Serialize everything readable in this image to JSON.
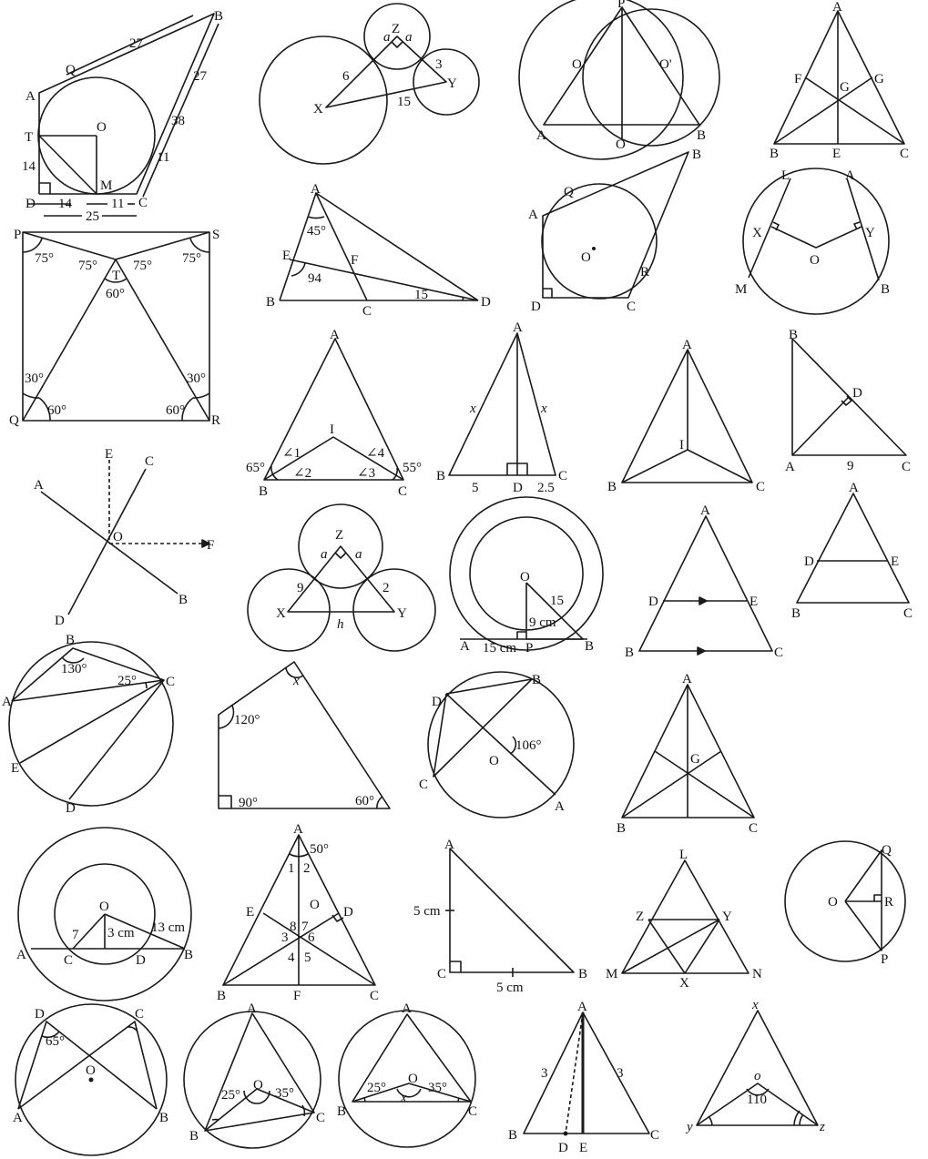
{
  "figures": [
    {
      "id": "kite-incircle",
      "labels": [
        "A",
        "B",
        "C",
        "D",
        "M",
        "O",
        "Q",
        "T",
        "27",
        "27",
        "38",
        "11",
        "14",
        "14",
        "11",
        "25"
      ]
    },
    {
      "id": "three-circles-right-angle",
      "labels": [
        "Z",
        "a",
        "a",
        "X",
        "Y",
        "6",
        "3",
        "15"
      ]
    },
    {
      "id": "two-circles-triangle",
      "labels": [
        "P",
        "O",
        "O'",
        "A",
        "O",
        "B"
      ]
    },
    {
      "id": "triangle-centroid",
      "labels": [
        "A",
        "F",
        "G",
        "G",
        "B",
        "E",
        "C"
      ]
    },
    {
      "id": "square-equilateral",
      "labels": [
        "P",
        "S",
        "Q",
        "R",
        "T",
        "75°",
        "75°",
        "75°",
        "75°",
        "60°",
        "30°",
        "60°",
        "30°",
        "60°"
      ]
    },
    {
      "id": "triangle-cevian",
      "labels": [
        "A",
        "45°",
        "E",
        "F",
        "94",
        "15",
        "B",
        "C",
        "D"
      ]
    },
    {
      "id": "quad-incircle",
      "labels": [
        "B",
        "Q",
        "A",
        "O",
        "R",
        "D",
        "C"
      ]
    },
    {
      "id": "circle-chords-perp",
      "labels": [
        "L",
        "A",
        "X",
        "Y",
        "O",
        "M",
        "B"
      ]
    },
    {
      "id": "triangle-incenter-angles",
      "labels": [
        "A",
        "I",
        "∠1",
        "∠4",
        "65°",
        "∠2",
        "∠3",
        "55°",
        "B",
        "C"
      ]
    },
    {
      "id": "isosceles-altitude",
      "labels": [
        "A",
        "x",
        "x",
        "B",
        "5",
        "D",
        "2.5",
        "C"
      ]
    },
    {
      "id": "triangle-incenter",
      "labels": [
        "A",
        "I",
        "B",
        "C"
      ]
    },
    {
      "id": "right-triangle-altitude",
      "labels": [
        "B",
        "D",
        "A",
        "9",
        "C"
      ]
    },
    {
      "id": "intersecting-lines",
      "labels": [
        "E",
        "C",
        "A",
        "O",
        "F",
        "D",
        "B"
      ]
    },
    {
      "id": "three-circles-h",
      "labels": [
        "Z",
        "a",
        "a",
        "9",
        "2",
        "X",
        "Y",
        "h"
      ]
    },
    {
      "id": "concentric-chord",
      "labels": [
        "O",
        "15",
        "9 cm",
        "A",
        "15 cm",
        "P",
        "B"
      ]
    },
    {
      "id": "triangle-parallel-arrows",
      "labels": [
        "A",
        "D",
        "E",
        "B",
        "C"
      ]
    },
    {
      "id": "triangle-midline",
      "labels": [
        "A",
        "D",
        "E",
        "B",
        "C"
      ]
    },
    {
      "id": "cyclic-chords",
      "labels": [
        "B",
        "130°",
        "25°",
        "C",
        "A",
        "E",
        "D"
      ]
    },
    {
      "id": "pentagon-angles",
      "labels": [
        "x",
        "120°",
        "90°",
        "60°"
      ]
    },
    {
      "id": "circle-diameters",
      "labels": [
        "D",
        "B",
        "106°",
        "O",
        "C",
        "A"
      ]
    },
    {
      "id": "triangle-medians",
      "labels": [
        "A",
        "G",
        "B",
        "C"
      ]
    },
    {
      "id": "concentric-chord-2",
      "labels": [
        "O",
        "7",
        "3 cm",
        "13 cm",
        "A",
        "C",
        "D",
        "B"
      ]
    },
    {
      "id": "triangle-numbered-angles",
      "labels": [
        "A",
        "50°",
        "1",
        "2",
        "O",
        "E",
        "D",
        "8",
        "7",
        "3",
        "6",
        "4",
        "5",
        "B",
        "F",
        "C"
      ]
    },
    {
      "id": "right-isosceles",
      "labels": [
        "A",
        "5 cm",
        "C",
        "5 cm",
        "B"
      ]
    },
    {
      "id": "triangle-lmn",
      "labels": [
        "L",
        "Z",
        "Y",
        "M",
        "X",
        "N"
      ]
    },
    {
      "id": "circle-chord-qp",
      "labels": [
        "Q",
        "O",
        "R",
        "P"
      ]
    },
    {
      "id": "circle-inscribed-65",
      "labels": [
        "D",
        "C",
        "65°",
        "O",
        "A",
        "B"
      ]
    },
    {
      "id": "circle-inscribed-25-35",
      "labels": [
        "A",
        "O",
        "25°",
        "35°",
        "B",
        "C"
      ]
    },
    {
      "id": "circle-inscribed-x",
      "labels": [
        "A",
        "O",
        "25°",
        "35°",
        "x",
        "B",
        "C"
      ]
    },
    {
      "id": "isosceles-median",
      "labels": [
        "A",
        "3",
        "3",
        "B",
        "D",
        "E",
        "C"
      ]
    },
    {
      "id": "triangle-xyz-110",
      "labels": [
        "x",
        "o",
        "110",
        "y",
        "z"
      ]
    }
  ]
}
